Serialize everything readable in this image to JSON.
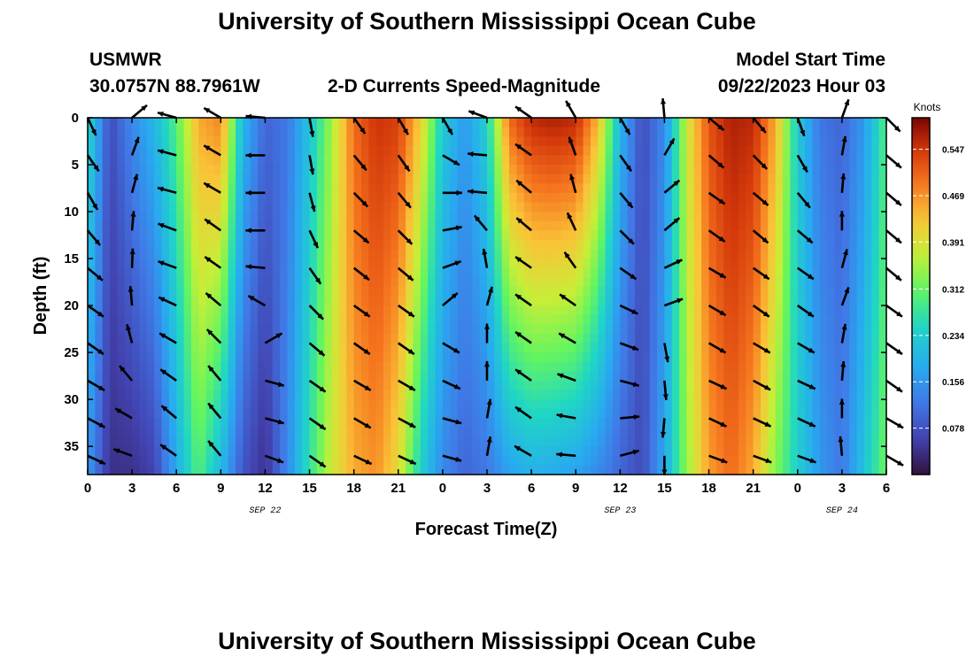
{
  "header": {
    "title": "University of Southern Mississippi Ocean Cube",
    "station": "USMWR",
    "coordinates": "30.0757N  88.7961W",
    "subtitle": "2-D Currents Speed-Magnitude",
    "model_start_label": "Model Start Time",
    "model_start_value": "09/22/2023 Hour 03"
  },
  "footer": {
    "title": "University of Southern Mississippi Ocean Cube"
  },
  "chart_data": {
    "type": "heatmap",
    "title": "2-D Currents Speed-Magnitude",
    "xlabel": "Forecast Time(Z)",
    "ylabel": "Depth (ft)",
    "x_ticks": [
      "0",
      "3",
      "6",
      "9",
      "12",
      "15",
      "18",
      "21",
      "0",
      "3",
      "6",
      "9",
      "12",
      "15",
      "18",
      "21",
      "0",
      "3",
      "6"
    ],
    "x_range_hours": [
      0,
      54
    ],
    "date_labels": [
      {
        "label": "SEP 22",
        "hour": 12
      },
      {
        "label": "SEP 23",
        "hour": 36
      },
      {
        "label": "SEP 24",
        "hour": 51
      }
    ],
    "y_ticks": [
      0,
      5,
      10,
      15,
      20,
      25,
      30,
      35
    ],
    "y_range_ft": [
      0,
      38
    ],
    "colorbar": {
      "unit": "Knots",
      "labels": [
        "0.547",
        "0.469",
        "0.391",
        "0.312",
        "0.234",
        "0.156",
        "0.078"
      ],
      "values": [
        0.547,
        0.469,
        0.391,
        0.312,
        0.234,
        0.156,
        0.078
      ],
      "range": [
        0.0,
        0.6
      ]
    },
    "speed_columns": [
      {
        "hour": 0,
        "top": 0.26,
        "bottom": 0.16
      },
      {
        "hour": 1.5,
        "top": 0.07,
        "bottom": 0.04
      },
      {
        "hour": 3,
        "top": 0.14,
        "bottom": 0.04
      },
      {
        "hour": 4.5,
        "top": 0.2,
        "bottom": 0.06
      },
      {
        "hour": 6,
        "top": 0.3,
        "bottom": 0.18
      },
      {
        "hour": 7.5,
        "top": 0.45,
        "bottom": 0.3
      },
      {
        "hour": 9,
        "top": 0.48,
        "bottom": 0.2
      },
      {
        "hour": 10.5,
        "top": 0.2,
        "bottom": 0.08
      },
      {
        "hour": 12,
        "top": 0.1,
        "bottom": 0.04
      },
      {
        "hour": 13.5,
        "top": 0.12,
        "bottom": 0.14
      },
      {
        "hour": 15,
        "top": 0.22,
        "bottom": 0.27
      },
      {
        "hour": 16.5,
        "top": 0.35,
        "bottom": 0.38
      },
      {
        "hour": 18,
        "top": 0.5,
        "bottom": 0.45
      },
      {
        "hour": 19.5,
        "top": 0.55,
        "bottom": 0.47
      },
      {
        "hour": 21,
        "top": 0.54,
        "bottom": 0.4
      },
      {
        "hour": 22.5,
        "top": 0.42,
        "bottom": 0.24
      },
      {
        "hour": 24,
        "top": 0.23,
        "bottom": 0.14
      },
      {
        "hour": 25.5,
        "top": 0.16,
        "bottom": 0.1
      },
      {
        "hour": 27,
        "top": 0.24,
        "bottom": 0.12
      },
      {
        "hour": 28.5,
        "top": 0.5,
        "bottom": 0.17
      },
      {
        "hour": 30,
        "top": 0.56,
        "bottom": 0.19
      },
      {
        "hour": 31.5,
        "top": 0.57,
        "bottom": 0.18
      },
      {
        "hour": 33,
        "top": 0.56,
        "bottom": 0.17
      },
      {
        "hour": 34.5,
        "top": 0.44,
        "bottom": 0.14
      },
      {
        "hour": 36,
        "top": 0.2,
        "bottom": 0.1
      },
      {
        "hour": 37.5,
        "top": 0.07,
        "bottom": 0.07
      },
      {
        "hour": 39,
        "top": 0.14,
        "bottom": 0.18
      },
      {
        "hour": 40.5,
        "top": 0.38,
        "bottom": 0.34
      },
      {
        "hour": 42,
        "top": 0.52,
        "bottom": 0.46
      },
      {
        "hour": 43.5,
        "top": 0.57,
        "bottom": 0.5
      },
      {
        "hour": 45,
        "top": 0.56,
        "bottom": 0.45
      },
      {
        "hour": 46.5,
        "top": 0.45,
        "bottom": 0.33
      },
      {
        "hour": 48,
        "top": 0.23,
        "bottom": 0.24
      },
      {
        "hour": 49.5,
        "top": 0.12,
        "bottom": 0.16
      },
      {
        "hour": 51,
        "top": 0.1,
        "bottom": 0.12
      },
      {
        "hour": 52.5,
        "top": 0.16,
        "bottom": 0.22
      },
      {
        "hour": 54,
        "top": 0.3,
        "bottom": 0.32
      }
    ],
    "vector_depths_ft": [
      0,
      4,
      8,
      12,
      16,
      20,
      24,
      28,
      32,
      36
    ],
    "vector_directions_deg": [
      {
        "hour": 0,
        "dirs": [
          -65,
          -55,
          -60,
          -50,
          -40,
          -35,
          -35,
          -30,
          -28,
          -25
        ]
      },
      {
        "hour": 3,
        "dirs": [
          40,
          70,
          75,
          85,
          88,
          95,
          105,
          130,
          150,
          160
        ]
      },
      {
        "hour": 6,
        "dirs": [
          165,
          165,
          165,
          160,
          160,
          155,
          150,
          145,
          140,
          145
        ]
      },
      {
        "hour": 9,
        "dirs": [
          150,
          150,
          150,
          145,
          145,
          140,
          135,
          130,
          130,
          130
        ]
      },
      {
        "hour": 12,
        "dirs": [
          175,
          180,
          180,
          180,
          175,
          150,
          30,
          -15,
          -15,
          -20
        ]
      },
      {
        "hour": 15,
        "dirs": [
          -80,
          -80,
          -75,
          -65,
          -55,
          -45,
          -40,
          -35,
          -35,
          -35
        ]
      },
      {
        "hour": 18,
        "dirs": [
          -55,
          -50,
          -45,
          -40,
          -38,
          -35,
          -35,
          -30,
          -30,
          -25
        ]
      },
      {
        "hour": 21,
        "dirs": [
          -60,
          -55,
          -50,
          -45,
          -40,
          -35,
          -35,
          -30,
          -28,
          -25
        ]
      },
      {
        "hour": 24,
        "dirs": [
          -60,
          -30,
          0,
          10,
          20,
          40,
          -30,
          -25,
          -15,
          -15
        ]
      },
      {
        "hour": 27,
        "dirs": [
          160,
          175,
          175,
          130,
          100,
          75,
          90,
          90,
          80,
          80
        ]
      },
      {
        "hour": 30,
        "dirs": [
          145,
          145,
          140,
          140,
          145,
          145,
          145,
          145,
          145,
          150
        ]
      },
      {
        "hour": 33,
        "dirs": [
          120,
          110,
          105,
          115,
          125,
          145,
          150,
          160,
          170,
          175
        ]
      },
      {
        "hour": 36,
        "dirs": [
          -60,
          -55,
          -50,
          -45,
          -35,
          -25,
          -20,
          -15,
          5,
          15
        ]
      },
      {
        "hour": 39,
        "dirs": [
          95,
          60,
          40,
          40,
          25,
          20,
          -80,
          -85,
          -95,
          -90
        ]
      },
      {
        "hour": 42,
        "dirs": [
          -40,
          -40,
          -35,
          -35,
          -30,
          -30,
          -30,
          -25,
          -25,
          -20
        ]
      },
      {
        "hour": 45,
        "dirs": [
          -50,
          -45,
          -40,
          -40,
          -35,
          -35,
          -30,
          -28,
          -25,
          -20
        ]
      },
      {
        "hour": 48,
        "dirs": [
          -70,
          -60,
          -50,
          -40,
          -35,
          -35,
          -30,
          -25,
          -25,
          -20
        ]
      },
      {
        "hour": 51,
        "dirs": [
          70,
          80,
          85,
          90,
          75,
          70,
          80,
          85,
          90,
          95
        ]
      },
      {
        "hour": 54,
        "dirs": [
          -45,
          -40,
          -40,
          -40,
          -40,
          -35,
          -35,
          -35,
          -30,
          -30
        ]
      }
    ]
  }
}
